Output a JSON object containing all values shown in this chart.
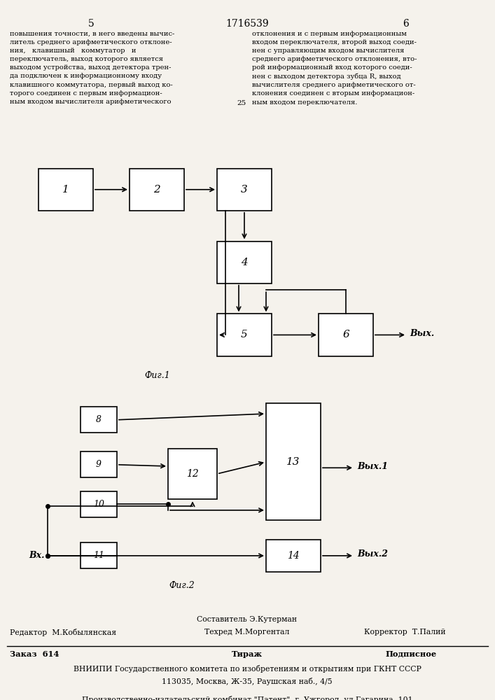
{
  "page_num_left": "5",
  "page_num_center": "1716539",
  "page_num_right": "6",
  "fig1_label": "Фиг.1",
  "fig2_label": "Фиг.2",
  "bg_color": "#f5f2ec",
  "footer_composer": "Составитель Э.Кутерман",
  "footer_techred": "Техред М.Моргентал",
  "footer_editor": "Редактор  М.Кобылянская",
  "footer_corrector": "Корректор  Т.Палий",
  "footer_order": "Заказ  614",
  "footer_tirazh": "Тираж",
  "footer_podpisnoe": "Подписное",
  "footer_vnipi": "ВНИИПИ Государственного комитета по изобретениям и открытиям при ГКНТ СССР",
  "footer_addr": "113035, Москва, Ж-35, Раушская наб., 4/5",
  "footer_patent": "Производственно-издательский комбинат \"Патент\", г. Ужгород, ул.Гагарина, 101"
}
